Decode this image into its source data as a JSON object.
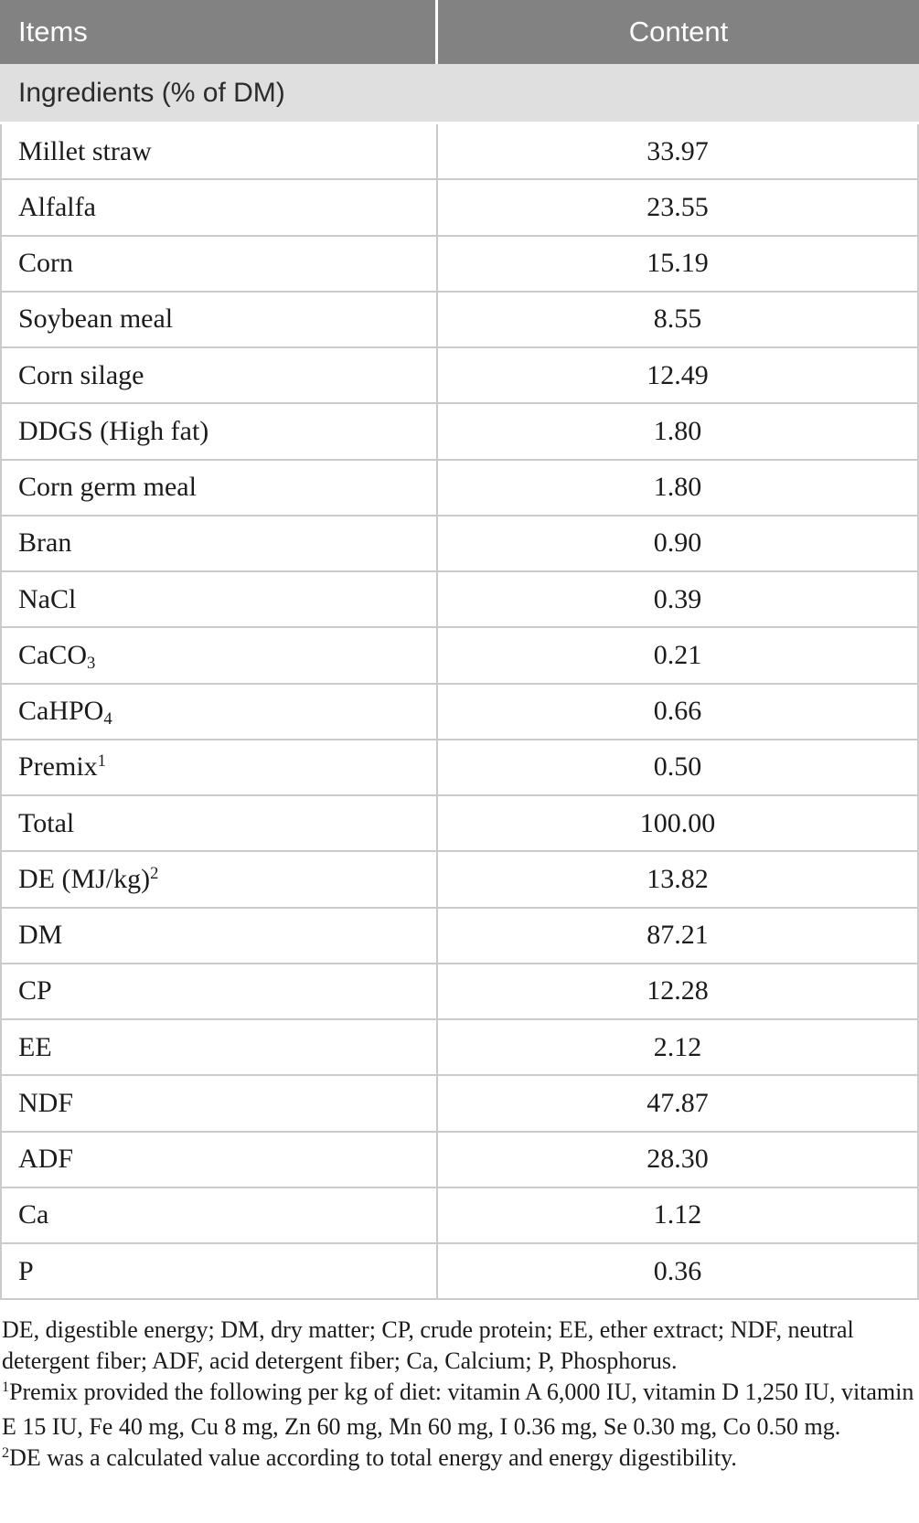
{
  "colors": {
    "header_bg": "#828282",
    "header_text": "#ffffff",
    "section_bg": "#e0dfdf",
    "body_text": "#1b1b1b",
    "grid_line": "#cbcbcb"
  },
  "table": {
    "columns": {
      "items_label": "Items",
      "content_label": "Content"
    },
    "section_header": "Ingredients (% of DM)",
    "rows": [
      {
        "item": "Millet straw",
        "value": "33.97"
      },
      {
        "item": "Alfalfa",
        "value": "23.55"
      },
      {
        "item": "Corn",
        "value": "15.19"
      },
      {
        "item": "Soybean meal",
        "value": "8.55"
      },
      {
        "item": "Corn silage",
        "value": "12.49"
      },
      {
        "item": "DDGS (High fat)",
        "value": "1.80"
      },
      {
        "item": "Corn germ meal",
        "value": "1.80"
      },
      {
        "item": "Bran",
        "value": "0.90"
      },
      {
        "item": "NaCl",
        "value": "0.39"
      },
      {
        "item": "CaCO",
        "sub": "3",
        "value": "0.21"
      },
      {
        "item": "CaHPO",
        "sub": "4",
        "value": "0.66"
      },
      {
        "item": "Premix",
        "sup": "1",
        "value": "0.50"
      },
      {
        "item": "Total",
        "value": "100.00"
      },
      {
        "item": "DE (MJ/kg)",
        "sup": "2",
        "value": "13.82"
      },
      {
        "item": "DM",
        "value": "87.21"
      },
      {
        "item": "CP",
        "value": "12.28"
      },
      {
        "item": "EE",
        "value": "2.12"
      },
      {
        "item": "NDF",
        "value": "47.87"
      },
      {
        "item": "ADF",
        "value": "28.30"
      },
      {
        "item": "Ca",
        "value": "1.12"
      },
      {
        "item": "P",
        "value": "0.36"
      }
    ]
  },
  "footnotes": [
    {
      "marker": "",
      "text": "DE, digestible energy; DM, dry matter; CP, crude protein; EE, ether extract; NDF, neutral detergent fiber; ADF, acid detergent fiber; Ca, Calcium; P, Phosphorus."
    },
    {
      "marker": "1",
      "text": "Premix provided the following per kg of diet: vitamin A 6,000 IU, vitamin D 1,250 IU, vitamin E 15 IU, Fe 40 mg, Cu 8 mg, Zn 60 mg, Mn 60 mg, I 0.36 mg, Se 0.30 mg, Co 0.50 mg."
    },
    {
      "marker": "2",
      "text": "DE was a calculated value according to total energy and energy digestibility."
    }
  ]
}
